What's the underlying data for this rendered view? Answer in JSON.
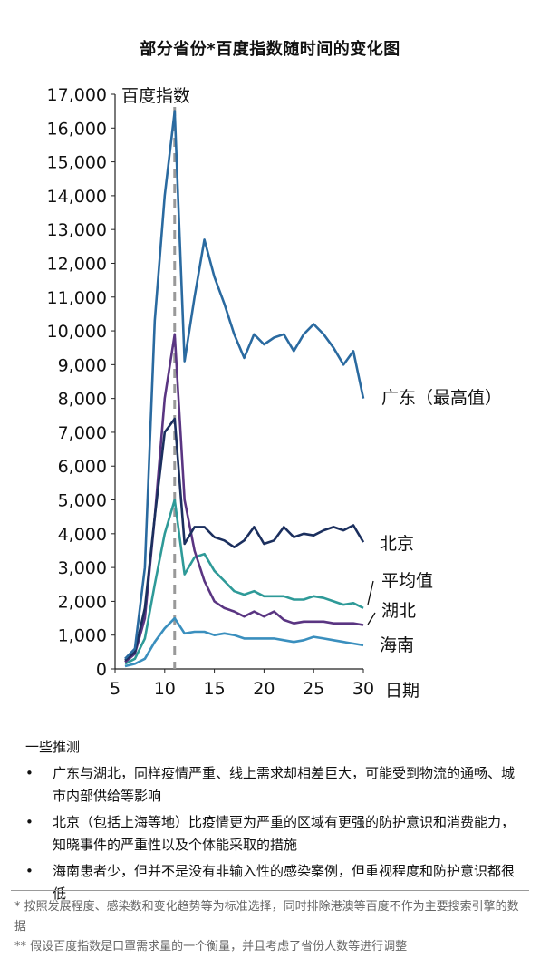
{
  "chart_data": {
    "type": "line",
    "title": "部分省份*百度指数随时间的变化图",
    "ylabel": "百度指数",
    "xlabel": "日期",
    "ylim": [
      0,
      17000
    ],
    "xlim": [
      5,
      30
    ],
    "yticks": [
      "0",
      "1,000",
      "2,000",
      "3,000",
      "4,000",
      "5,000",
      "6,000",
      "7,000",
      "8,000",
      "9,000",
      "10,000",
      "11,000",
      "12,000",
      "13,000",
      "14,000",
      "15,000",
      "16,000",
      "17,000"
    ],
    "xticks": [
      "5",
      "10",
      "15",
      "20",
      "25",
      "30"
    ],
    "reference_line_x": 11,
    "grid": false,
    "legend": "labels at line ends (right)",
    "series": [
      {
        "name": "广东（最高值）",
        "color": "#2a6aa0",
        "x": [
          6,
          7,
          8,
          9,
          10,
          11,
          12,
          13,
          14,
          15,
          16,
          17,
          18,
          19,
          20,
          21,
          22,
          23,
          24,
          25,
          26,
          27,
          28,
          29,
          30
        ],
        "y": [
          300,
          600,
          3000,
          10300,
          14000,
          16500,
          9100,
          11000,
          12700,
          11600,
          10800,
          9900,
          9200,
          9900,
          9600,
          9800,
          9900,
          9400,
          9900,
          10200,
          9900,
          9500,
          9000,
          9400,
          8000
        ]
      },
      {
        "name": "北京",
        "color": "#1b2f5e",
        "x": [
          6,
          7,
          8,
          9,
          10,
          11,
          12,
          13,
          14,
          15,
          16,
          17,
          18,
          19,
          20,
          21,
          22,
          23,
          24,
          25,
          26,
          27,
          28,
          29,
          30
        ],
        "y": [
          250,
          500,
          1800,
          4500,
          7000,
          7400,
          3700,
          4200,
          4200,
          3900,
          3800,
          3600,
          3800,
          4200,
          3700,
          3800,
          4200,
          3900,
          4000,
          3950,
          4100,
          4200,
          4100,
          4250,
          3750
        ]
      },
      {
        "name": "平均值",
        "color": "#2e9a98",
        "x": [
          6,
          7,
          8,
          9,
          10,
          11,
          12,
          13,
          14,
          15,
          16,
          17,
          18,
          19,
          20,
          21,
          22,
          23,
          24,
          25,
          26,
          27,
          28,
          29,
          30
        ],
        "y": [
          150,
          300,
          900,
          2500,
          4000,
          5000,
          2800,
          3300,
          3400,
          2900,
          2600,
          2300,
          2200,
          2300,
          2150,
          2150,
          2150,
          2050,
          2050,
          2150,
          2100,
          2000,
          1900,
          1950,
          1800
        ]
      },
      {
        "name": "湖北",
        "color": "#5a3582",
        "x": [
          6,
          7,
          8,
          9,
          10,
          11,
          12,
          13,
          14,
          15,
          16,
          17,
          18,
          19,
          20,
          21,
          22,
          23,
          24,
          25,
          26,
          27,
          28,
          29,
          30
        ],
        "y": [
          200,
          450,
          1500,
          4500,
          8000,
          9900,
          5000,
          3500,
          2600,
          2000,
          1800,
          1700,
          1550,
          1700,
          1550,
          1700,
          1450,
          1350,
          1400,
          1400,
          1400,
          1350,
          1350,
          1350,
          1300
        ]
      },
      {
        "name": "海南",
        "color": "#3a8fbe",
        "x": [
          6,
          7,
          8,
          9,
          10,
          11,
          12,
          13,
          14,
          15,
          16,
          17,
          18,
          19,
          20,
          21,
          22,
          23,
          24,
          25,
          26,
          27,
          28,
          29,
          30
        ],
        "y": [
          80,
          150,
          300,
          800,
          1200,
          1500,
          1050,
          1100,
          1100,
          1000,
          1050,
          1000,
          900,
          900,
          900,
          900,
          850,
          800,
          850,
          950,
          900,
          850,
          800,
          750,
          700
        ]
      }
    ]
  },
  "notes": {
    "title": "一些推测",
    "items": [
      "广东与湖北，同样疫情严重、线上需求却相差巨大，可能受到物流的通畅、城市内部供给等影响",
      "北京（包括上海等地）比疫情更为严重的区域有更强的防护意识和消费能力，知晓事件的严重性以及个体能采取的措施",
      "海南患者少，但并不是没有非输入性的感染案例，但重视程度和防护意识都很低"
    ]
  },
  "footnotes": [
    "* 按照发展程度、感染数和变化趋势等为标准选择，同时排除港澳等百度不作为主要搜索引擎的数据",
    "** 假设百度指数是口罩需求量的一个衡量，并且考虑了省份人数等进行调整"
  ]
}
